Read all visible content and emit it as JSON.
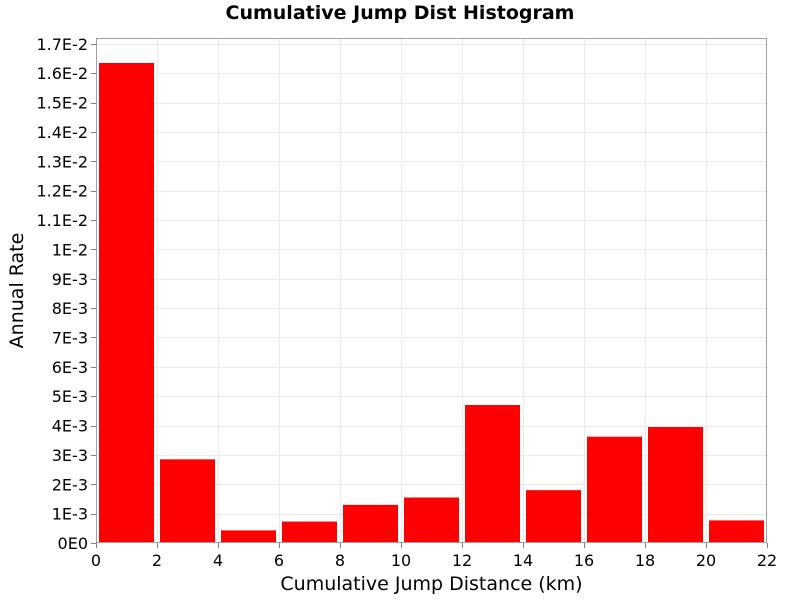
{
  "chart_data": {
    "type": "bar",
    "title": "Cumulative Jump Dist Histogram",
    "xlabel": "Cumulative Jump Distance (km)",
    "ylabel": "Annual Rate",
    "xlim": [
      0,
      22
    ],
    "ylim": [
      0,
      0.0172
    ],
    "x_ticks": [
      0,
      2,
      4,
      6,
      8,
      10,
      12,
      14,
      16,
      18,
      20,
      22
    ],
    "x_tick_labels": [
      "0",
      "2",
      "4",
      "6",
      "8",
      "10",
      "12",
      "14",
      "16",
      "18",
      "20",
      "22"
    ],
    "y_ticks": [
      0,
      0.001,
      0.002,
      0.003,
      0.004,
      0.005,
      0.006,
      0.007,
      0.008,
      0.009,
      0.01,
      0.011,
      0.012,
      0.013,
      0.014,
      0.015,
      0.016,
      0.017
    ],
    "y_tick_labels": [
      "0E0",
      "1E-3",
      "2E-3",
      "3E-3",
      "4E-3",
      "5E-3",
      "6E-3",
      "7E-3",
      "8E-3",
      "9E-3",
      "1E-2",
      "1.1E-2",
      "1.2E-2",
      "1.3E-2",
      "1.4E-2",
      "1.5E-2",
      "1.6E-2",
      "1.7E-2"
    ],
    "bins": [
      {
        "x_start": 0,
        "x_end": 2,
        "value": 0.01635
      },
      {
        "x_start": 2,
        "x_end": 4,
        "value": 0.00285
      },
      {
        "x_start": 4,
        "x_end": 6,
        "value": 0.00043
      },
      {
        "x_start": 6,
        "x_end": 8,
        "value": 0.00073
      },
      {
        "x_start": 8,
        "x_end": 10,
        "value": 0.0013
      },
      {
        "x_start": 10,
        "x_end": 12,
        "value": 0.00155
      },
      {
        "x_start": 12,
        "x_end": 14,
        "value": 0.0047
      },
      {
        "x_start": 14,
        "x_end": 16,
        "value": 0.0018
      },
      {
        "x_start": 16,
        "x_end": 18,
        "value": 0.00362
      },
      {
        "x_start": 18,
        "x_end": 20,
        "value": 0.00395
      },
      {
        "x_start": 20,
        "x_end": 22,
        "value": 0.00077
      }
    ],
    "bar_color": "#ff0000",
    "grid": true,
    "grid_color": "#ebebeb",
    "legend": "none"
  }
}
